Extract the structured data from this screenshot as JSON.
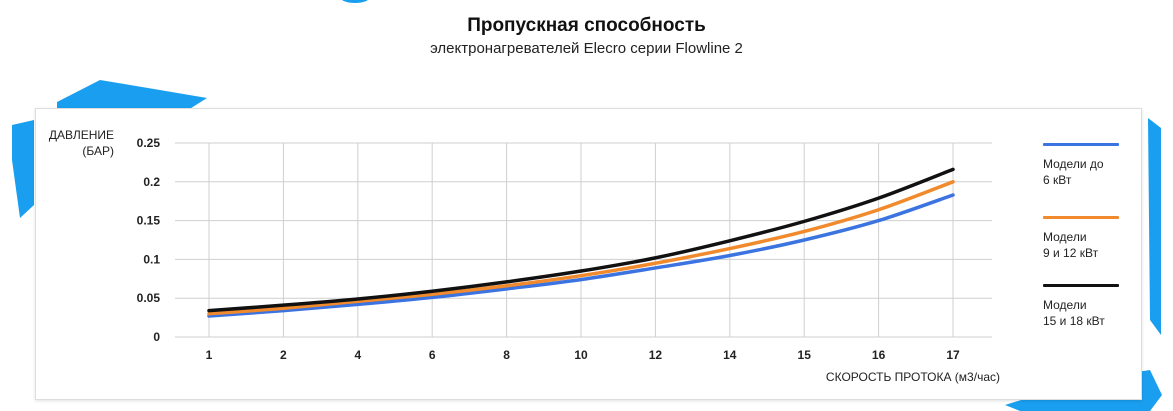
{
  "chart_data": {
    "type": "line",
    "title": "Пропускная способность",
    "subtitle": "электронагревателей Elecro серии Flowline 2",
    "ylabel_lines": [
      "ДАВЛЕНИЕ",
      "(БАР)"
    ],
    "xlabel": "СКОРОСТЬ ПРОТОКА (м3/час)",
    "categories": [
      "1",
      "2",
      "4",
      "6",
      "8",
      "10",
      "12",
      "14",
      "15",
      "16",
      "17"
    ],
    "yticks": [
      "0",
      "0.05",
      "0.1",
      "0.15",
      "0.2",
      "0.25"
    ],
    "ylim": [
      0,
      0.25
    ],
    "grid": true,
    "legend_position": "right",
    "series": [
      {
        "name_lines": [
          "Модели до",
          "6 кВт"
        ],
        "color": "#3b73e0",
        "values": [
          0.027,
          0.034,
          0.042,
          0.051,
          0.062,
          0.074,
          0.089,
          0.105,
          0.125,
          0.15,
          0.183
        ]
      },
      {
        "name_lines": [
          "Модели",
          "9 и 12 кВт"
        ],
        "color": "#f08a2c",
        "values": [
          0.03,
          0.037,
          0.046,
          0.055,
          0.066,
          0.079,
          0.095,
          0.114,
          0.136,
          0.164,
          0.2
        ]
      },
      {
        "name_lines": [
          "Модели",
          "15 и 18 кВт"
        ],
        "color": "#111111",
        "values": [
          0.034,
          0.041,
          0.049,
          0.059,
          0.071,
          0.085,
          0.102,
          0.124,
          0.149,
          0.179,
          0.216
        ]
      }
    ]
  },
  "decor": {
    "accent_color": "#1a9ff0",
    "grid_color": "#cfcfcf"
  }
}
